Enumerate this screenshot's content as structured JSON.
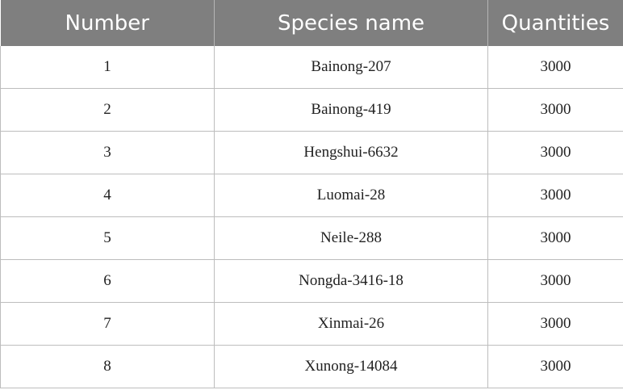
{
  "table": {
    "header": [
      "Number",
      "Species name",
      "Quantities"
    ],
    "rows": [
      [
        "1",
        "Bainong-207",
        "3000"
      ],
      [
        "2",
        "Bainong-419",
        "3000"
      ],
      [
        "3",
        "Hengshui-6632",
        "3000"
      ],
      [
        "4",
        "Luomai-28",
        "3000"
      ],
      [
        "5",
        "Neile-288",
        "3000"
      ],
      [
        "6",
        "Nongda-3416-18",
        "3000"
      ],
      [
        "7",
        "Xinmai-26",
        "3000"
      ],
      [
        "8",
        "Xunong-14084",
        "3000"
      ]
    ]
  }
}
